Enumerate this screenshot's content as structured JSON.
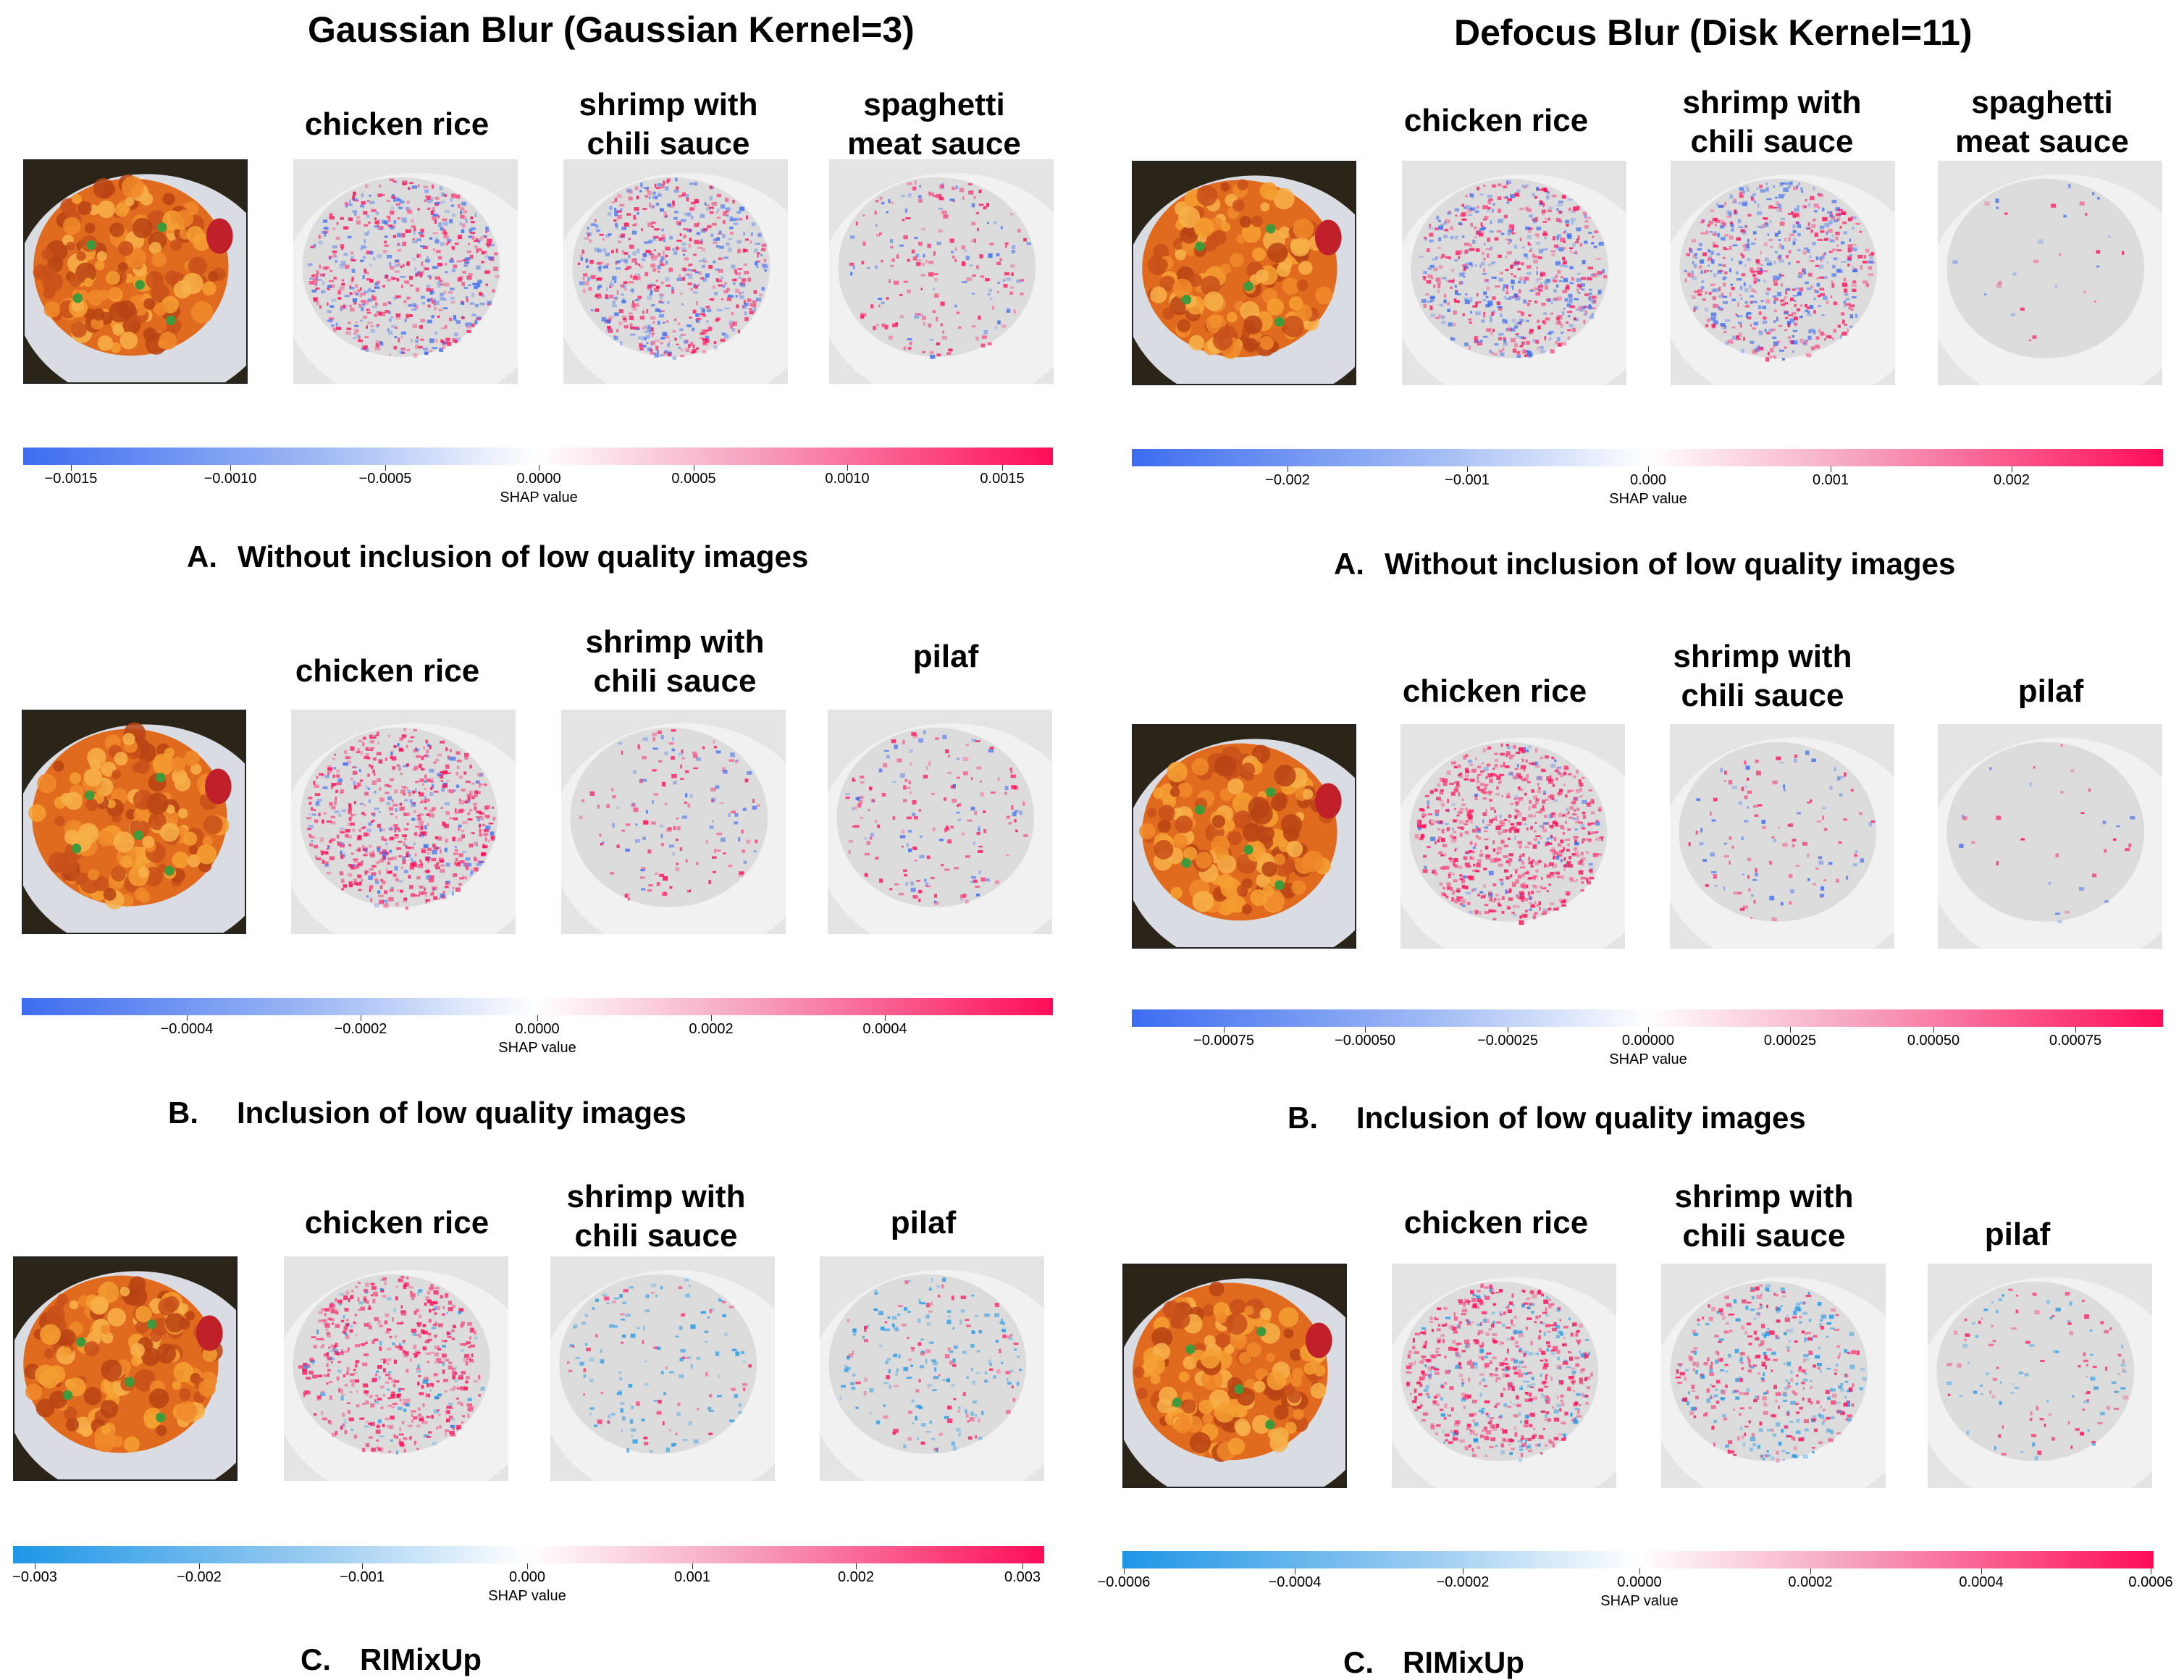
{
  "titles": {
    "left": "Gaussian Blur (Gaussian Kernel=3)",
    "right": "Defocus Blur (Disk Kernel=11)"
  },
  "axis_label": "SHAP value",
  "panels": [
    {
      "id": "gA",
      "heads": [
        "chicken rice",
        "shrimp with\nchili sauce",
        "spaghetti\nmeat sauce"
      ],
      "caption_letter": "A.",
      "caption_text": "Without inclusion of low quality images",
      "ticks": [
        "−0.0015",
        "−0.0010",
        "−0.0005",
        "0.0000",
        "0.0005",
        "0.0010",
        "0.0015"
      ]
    },
    {
      "id": "gB",
      "heads": [
        "chicken rice",
        "shrimp with\nchili sauce",
        "pilaf"
      ],
      "caption_letter": "B.",
      "caption_text": "Inclusion of low quality images",
      "ticks": [
        "−0.0004",
        "−0.0002",
        "0.0000",
        "0.0002",
        "0.0004"
      ]
    },
    {
      "id": "gC",
      "heads": [
        "chicken rice",
        "shrimp with\nchili sauce",
        "pilaf"
      ],
      "caption_letter": "C.",
      "caption_text": "RIMixUp",
      "ticks": [
        "−0.003",
        "−0.002",
        "−0.001",
        "0.000",
        "0.001",
        "0.002",
        "0.003"
      ]
    },
    {
      "id": "dA",
      "heads": [
        "chicken rice",
        "shrimp with\nchili sauce",
        "spaghetti\nmeat sauce"
      ],
      "caption_letter": "A.",
      "caption_text": "Without inclusion of low quality images",
      "ticks": [
        "−0.002",
        "−0.001",
        "0.000",
        "0.001",
        "0.002"
      ]
    },
    {
      "id": "dB",
      "heads": [
        "chicken rice",
        "shrimp with\nchili sauce",
        "pilaf"
      ],
      "caption_letter": "B.",
      "caption_text": "Inclusion of low quality images",
      "ticks": [
        "−0.00075",
        "−0.00050",
        "−0.00025",
        "0.00000",
        "0.00025",
        "0.00050",
        "0.00075"
      ]
    },
    {
      "id": "dC",
      "heads": [
        "chicken rice",
        "shrimp with\nchili sauce",
        "pilaf"
      ],
      "caption_letter": "C.",
      "caption_text": "RIMixUp",
      "ticks": [
        "−0.0006",
        "−0.0004",
        "−0.0002",
        "0.0000",
        "0.0002",
        "0.0004",
        "0.0006"
      ]
    }
  ],
  "colors": {
    "negative": "#3d6cf0",
    "negative_rimix": "#1e96e6",
    "positive": "#ff0d57"
  }
}
